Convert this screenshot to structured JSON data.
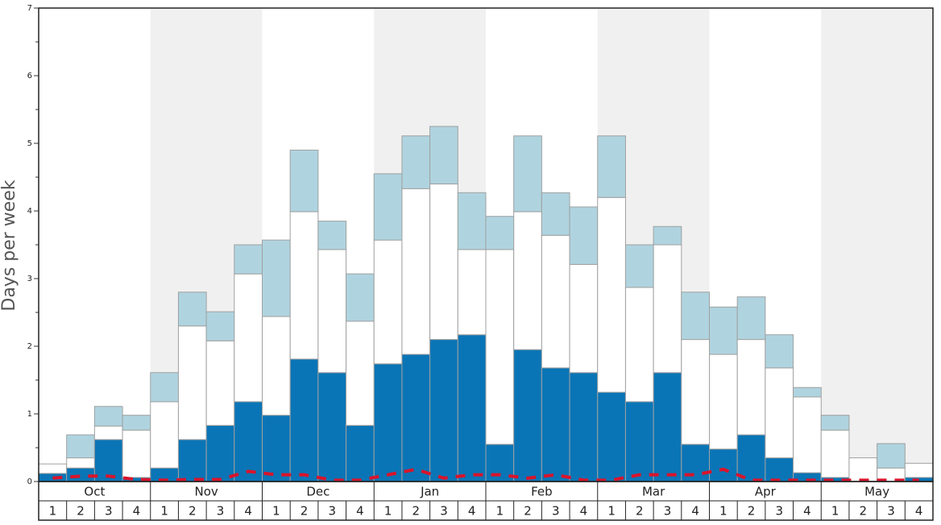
{
  "chart_data": {
    "type": "bar",
    "stacked": true,
    "y_label": "Days per week",
    "categories": [
      "1",
      "2",
      "3",
      "4",
      "1",
      "2",
      "3",
      "4",
      "1",
      "2",
      "3",
      "4",
      "1",
      "2",
      "3",
      "4",
      "1",
      "2",
      "3",
      "4",
      "1",
      "2",
      "3",
      "4",
      "1",
      "2",
      "3",
      "4",
      "1",
      "2",
      "3",
      "4"
    ],
    "groups": [
      "Oct",
      "Nov",
      "Dec",
      "Jan",
      "Feb",
      "Mar",
      "Apr",
      "May"
    ],
    "shaded_band_color": "#f0f0f0",
    "series": [
      {
        "color": "#0a75b6",
        "values": [
          0.12,
          0.2,
          0.62,
          0.06,
          0.2,
          0.62,
          0.83,
          1.18,
          0.98,
          1.81,
          1.61,
          0.83,
          1.74,
          1.88,
          2.1,
          2.17,
          0.55,
          1.95,
          1.68,
          1.61,
          1.32,
          1.18,
          1.61,
          0.55,
          0.48,
          0.69,
          0.35,
          0.13,
          0.06,
          0,
          0,
          0.06
        ]
      },
      {
        "color": "#ffffff",
        "values": [
          0.14,
          0.15,
          0.2,
          0.7,
          0.98,
          1.68,
          1.25,
          1.89,
          1.46,
          2.18,
          1.82,
          1.54,
          1.83,
          2.45,
          2.3,
          1.26,
          2.88,
          2.04,
          1.96,
          1.6,
          2.88,
          1.69,
          1.89,
          1.55,
          1.4,
          1.41,
          1.33,
          1.12,
          0.7,
          0.35,
          0.2,
          0.21
        ]
      },
      {
        "color": "#afd4e0",
        "values": [
          0,
          0.34,
          0.29,
          0.22,
          0.43,
          0.5,
          0.43,
          0.43,
          1.13,
          0.91,
          0.42,
          0.7,
          0.98,
          0.78,
          0.85,
          0.84,
          0.49,
          1.12,
          0.63,
          0.85,
          0.91,
          0.63,
          0.27,
          0.7,
          0.7,
          0.63,
          0.49,
          0.14,
          0.22,
          0,
          0.36,
          0
        ]
      },
      {
        "kind": "line",
        "dashed": true,
        "color": "#d9142b",
        "values": [
          0.05,
          0.08,
          0.08,
          0.03,
          0.02,
          0.03,
          0.03,
          0.15,
          0.1,
          0.1,
          0.02,
          0.02,
          0.1,
          0.18,
          0.05,
          0.1,
          0.1,
          0.05,
          0.1,
          0.02,
          0.02,
          0.1,
          0.1,
          0.1,
          0.18,
          0.02,
          0.02,
          0.02,
          0.02,
          0.02,
          0.02,
          0.02
        ]
      }
    ],
    "ylim": [
      0,
      7
    ],
    "yticks": [
      0,
      1,
      2,
      3,
      4,
      5,
      6,
      7
    ],
    "yminorticks": [
      0.5,
      1.5,
      2.5,
      3.5,
      4.5,
      5.5,
      6.5
    ]
  }
}
